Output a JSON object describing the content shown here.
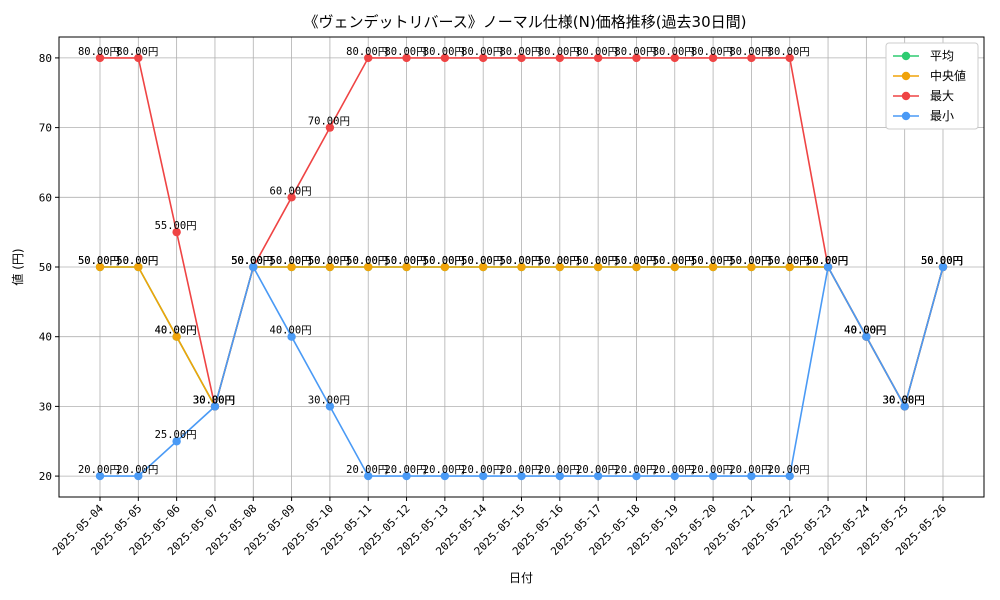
{
  "chart_data": {
    "type": "line",
    "title": "《ヴェンデットリバース》ノーマル仕様(N)価格推移(過去30日間)",
    "xlabel": "日付",
    "ylabel": "値 (円)",
    "label_suffix": "円",
    "ylim": [
      17,
      83
    ],
    "yticks": [
      20,
      30,
      40,
      50,
      60,
      70,
      80
    ],
    "grid": true,
    "legend_position": "top-right",
    "categories": [
      "2025-05-04",
      "2025-05-05",
      "2025-05-06",
      "2025-05-07",
      "2025-05-08",
      "2025-05-09",
      "2025-05-10",
      "2025-05-11",
      "2025-05-12",
      "2025-05-13",
      "2025-05-14",
      "2025-05-15",
      "2025-05-16",
      "2025-05-17",
      "2025-05-18",
      "2025-05-19",
      "2025-05-20",
      "2025-05-21",
      "2025-05-22",
      "2025-05-23",
      "2025-05-24",
      "2025-05-25",
      "2025-05-26"
    ],
    "series": [
      {
        "name": "平均",
        "color": "#2ecc71",
        "values": [
          50,
          50,
          40,
          30,
          50,
          50,
          50,
          50,
          50,
          50,
          50,
          50,
          50,
          50,
          50,
          50,
          50,
          50,
          50,
          50,
          40,
          30,
          50
        ]
      },
      {
        "name": "中央値",
        "color": "#f0a30a",
        "values": [
          50,
          50,
          40,
          30,
          50,
          50,
          50,
          50,
          50,
          50,
          50,
          50,
          50,
          50,
          50,
          50,
          50,
          50,
          50,
          50,
          40,
          30,
          50
        ]
      },
      {
        "name": "最大",
        "color": "#ef4444",
        "values": [
          80,
          80,
          55,
          30,
          50,
          60,
          70,
          80,
          80,
          80,
          80,
          80,
          80,
          80,
          80,
          80,
          80,
          80,
          80,
          50,
          40,
          30,
          50
        ]
      },
      {
        "name": "最小",
        "color": "#4a9af5",
        "values": [
          20,
          20,
          25,
          30,
          50,
          40,
          30,
          20,
          20,
          20,
          20,
          20,
          20,
          20,
          20,
          20,
          20,
          20,
          20,
          50,
          40,
          30,
          50
        ]
      }
    ]
  }
}
